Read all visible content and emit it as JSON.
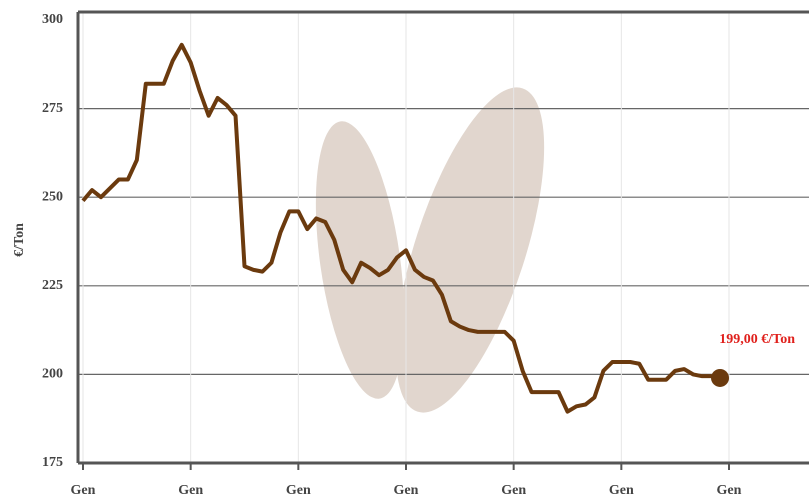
{
  "chart_data": {
    "type": "line",
    "y_label": "€/Ton",
    "annotation": "199,00 €/Ton",
    "categories": [
      "Gen",
      null,
      null,
      null,
      null,
      null,
      null,
      null,
      null,
      null,
      null,
      null,
      "Gen",
      null,
      null,
      null,
      null,
      null,
      null,
      null,
      null,
      null,
      null,
      null,
      "Gen",
      null,
      null,
      null,
      null,
      null,
      null,
      null,
      null,
      null,
      null,
      null,
      "Gen",
      null,
      null,
      null,
      null,
      null,
      null,
      null,
      null,
      null,
      null,
      null,
      "Gen",
      null,
      null,
      null,
      null,
      null,
      null,
      null,
      null,
      null,
      null,
      null,
      "Gen",
      null,
      null,
      null,
      null,
      null,
      null,
      null,
      null,
      null,
      null,
      null,
      "Gen"
    ],
    "series": [
      {
        "name": "€/Ton",
        "color": "#6b3a0e",
        "values": [
          249,
          252,
          250,
          252.5,
          255,
          255,
          260.5,
          282,
          282,
          282,
          288.5,
          293,
          288,
          280,
          273,
          278,
          276,
          273,
          230.5,
          229.5,
          229,
          231.5,
          240,
          246,
          246,
          241,
          244,
          243,
          238,
          229.5,
          226,
          231.5,
          230,
          228,
          229.5,
          233,
          235,
          229.5,
          227.5,
          226.5,
          222.5,
          215,
          213.5,
          212.5,
          212,
          212,
          212,
          212,
          209.5,
          201,
          195,
          195,
          195,
          195,
          189.5,
          191,
          191.5,
          193.5,
          201,
          203.5,
          203.5,
          203.5,
          203,
          198.5,
          198.5,
          198.5,
          201,
          201.5,
          200,
          199.5,
          199.5,
          199,
          null
        ]
      }
    ],
    "ylim": [
      175,
      300
    ],
    "yticks": [
      175,
      200,
      225,
      250,
      275,
      300
    ],
    "grid": true,
    "annotation_color": "#e0201c"
  }
}
